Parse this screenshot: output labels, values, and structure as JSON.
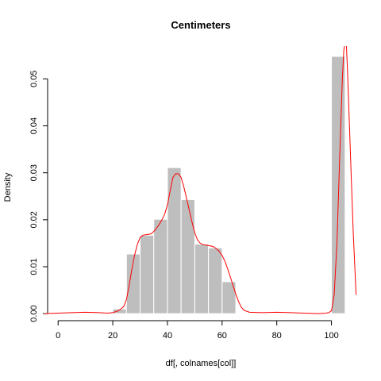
{
  "chart_data": {
    "type": "bar",
    "title": "Centimeters",
    "xlabel": "df[, colnames[col]]",
    "ylabel": "Density",
    "xlim": [
      -5,
      110
    ],
    "ylim": [
      -0.0015,
      0.057
    ],
    "x_ticks": [
      0,
      20,
      40,
      60,
      80,
      100
    ],
    "y_ticks": [
      0.0,
      0.01,
      0.02,
      0.03,
      0.04,
      0.05
    ],
    "y_tick_labels": [
      "0.00",
      "0.01",
      "0.02",
      "0.03",
      "0.04",
      "0.05"
    ],
    "grid": false,
    "colors": {
      "bars": "#bebebe",
      "bar_border": "#ffffff",
      "density_line": "#ff0000",
      "axis": "#000000"
    },
    "histogram": {
      "bin_edges": [
        20,
        25,
        30,
        35,
        40,
        45,
        50,
        55,
        60,
        65,
        70,
        75,
        80,
        85,
        90,
        95,
        100,
        105
      ],
      "densities": [
        0.001,
        0.0127,
        0.0167,
        0.0201,
        0.0311,
        0.0243,
        0.0148,
        0.014,
        0.0068,
        0,
        0,
        0,
        0,
        0,
        0,
        0,
        0.0548
      ]
    },
    "density_curve": {
      "x": [
        -5,
        0,
        5,
        10,
        15,
        18,
        20,
        22,
        24,
        25,
        26,
        27,
        28,
        29,
        30,
        31,
        32,
        33,
        34,
        35,
        36,
        37,
        38,
        39,
        40,
        41,
        42,
        43,
        44,
        45,
        46,
        47,
        48,
        49,
        50,
        51,
        52,
        53,
        54,
        55,
        56,
        57,
        58,
        59,
        60,
        61,
        62,
        63,
        64,
        65,
        66,
        67,
        68,
        70,
        75,
        80,
        85,
        90,
        95,
        98,
        99,
        100,
        101,
        102,
        103,
        104,
        104.5,
        105,
        105.5,
        106,
        107,
        108,
        109
      ],
      "y": [
        0.0,
        0.0001,
        0.0002,
        0.0003,
        0.0002,
        0.0001,
        0.0002,
        0.0006,
        0.0015,
        0.003,
        0.006,
        0.0095,
        0.0125,
        0.0148,
        0.0162,
        0.0167,
        0.0168,
        0.0169,
        0.017,
        0.0175,
        0.0182,
        0.019,
        0.02,
        0.0212,
        0.0232,
        0.0262,
        0.029,
        0.0298,
        0.0298,
        0.029,
        0.027,
        0.0245,
        0.022,
        0.0195,
        0.0172,
        0.0157,
        0.015,
        0.0147,
        0.0146,
        0.0145,
        0.0144,
        0.0142,
        0.0138,
        0.0132,
        0.0124,
        0.0112,
        0.0096,
        0.0078,
        0.006,
        0.0042,
        0.0026,
        0.0014,
        0.0007,
        0.0003,
        0.0002,
        0.0003,
        0.0002,
        0.0001,
        0.0,
        0.0001,
        0.0002,
        0.0006,
        0.004,
        0.015,
        0.033,
        0.05,
        0.056,
        0.058,
        0.057,
        0.05,
        0.033,
        0.017,
        0.004
      ]
    }
  }
}
